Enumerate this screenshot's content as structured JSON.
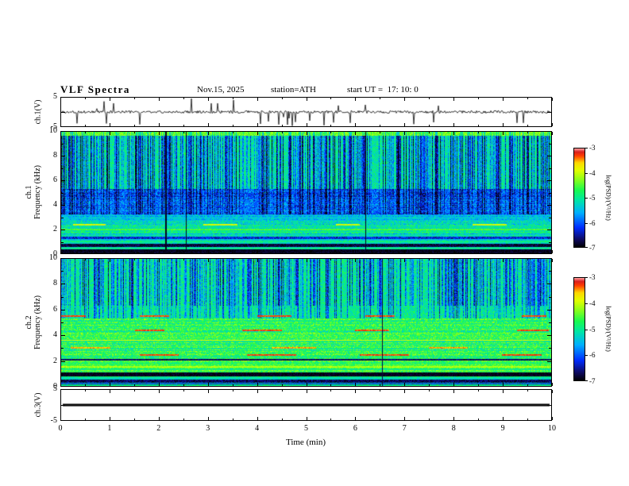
{
  "header": {
    "title": "VLF Spectra",
    "date": "Nov.15, 2025",
    "station": "station=ATH",
    "start_ut": "start UT =  17: 10: 0"
  },
  "xaxis": {
    "label": "Time (min)",
    "min": 0,
    "max": 10,
    "ticks": [
      "0",
      "1",
      "2",
      "3",
      "4",
      "5",
      "6",
      "7",
      "8",
      "9",
      "10"
    ]
  },
  "panels": [
    {
      "id": "ch1-voltage",
      "ylabel_lines": [
        "ch.1(V)"
      ],
      "yticks": [
        "5",
        "-5"
      ],
      "ymin": -5,
      "ymax": 5,
      "type": "waveform"
    },
    {
      "id": "ch1-spectrogram",
      "ylabel_lines": [
        "ch.1",
        "Frequency (kHz)"
      ],
      "yticks": [
        "10",
        "8",
        "6",
        "4",
        "2",
        "0"
      ],
      "ymin": 0,
      "ymax": 10,
      "type": "spectrogram"
    },
    {
      "id": "ch2-spectrogram",
      "ylabel_lines": [
        "ch.2",
        "Frequency (kHz)"
      ],
      "yticks": [
        "10",
        "8",
        "6",
        "4",
        "2",
        "0"
      ],
      "ymin": 0,
      "ymax": 10,
      "type": "spectrogram"
    },
    {
      "id": "ch3-voltage",
      "ylabel_lines": [
        "ch.3(V)"
      ],
      "yticks": [
        "5",
        "-5"
      ],
      "ymin": -5,
      "ymax": 5,
      "type": "flatline"
    }
  ],
  "colorbar": {
    "label": "log(PSD)/(V²/Hz)",
    "ticks": [
      "-3",
      "-4",
      "-5",
      "-6",
      "-7"
    ],
    "min": -7,
    "max": -3
  },
  "chart_data": [
    {
      "type": "line",
      "name": "ch.1(V) waveform",
      "xlabel": "Time (min)",
      "ylabel": "ch.1(V)",
      "xlim": [
        0,
        10
      ],
      "ylim": [
        -5,
        5
      ],
      "description": "Noisy broadband voltage trace centred near 0 V with frequent impulsive spikes reaching roughly ±5 V throughout the 10-minute record."
    },
    {
      "type": "heatmap",
      "name": "ch.1 spectrogram",
      "xlabel": "Time (min)",
      "ylabel": "ch.1 Frequency (kHz)",
      "xlim": [
        0,
        10
      ],
      "ylim": [
        0,
        10
      ],
      "zlim": [
        -7,
        -3
      ],
      "z_units": "log(PSD)/(V²/Hz)",
      "features": [
        "green-cyan background near -5 above 5 kHz with dense dark-blue vertical impulsive streaks",
        "darker blue band between roughly 3 and 5 kHz",
        "horizontal green/cyan striping below 3 kHz",
        "intermittent orange-red line segments near 2.3 kHz",
        "near-black bands below 0.8 kHz",
        "brighter yellow-green speckle along the 10 kHz top edge"
      ]
    },
    {
      "type": "heatmap",
      "name": "ch.2 spectrogram",
      "xlabel": "Time (min)",
      "ylabel": "ch.2 Frequency (kHz)",
      "xlim": [
        0,
        10
      ],
      "ylim": [
        0,
        10
      ],
      "zlim": [
        -7,
        -3
      ],
      "z_units": "log(PSD)/(V²/Hz)",
      "features": [
        "green background with dense dark-blue vertical streaks above 6 kHz",
        "bright yellow-green band from about 1 to 5 kHz",
        "intermittent dark-red horizontal stripe segments near 5.5, 4.3, 3.6, 3.0 and 2.4 kHz",
        "continuous dark line at 2 kHz",
        "black band between about 0.8 and 1.0 kHz",
        "thin dark lines near the 0 kHz bottom edge"
      ]
    },
    {
      "type": "line",
      "name": "ch.3(V) waveform",
      "xlabel": "Time (min)",
      "ylabel": "ch.3(V)",
      "xlim": [
        0,
        10
      ],
      "ylim": [
        -5,
        5
      ],
      "description": "Constant flat thick black trace at 0 V for the full record (no signal)."
    }
  ],
  "render": {
    "vmin": -7,
    "vmax": -3,
    "fmax": 10,
    "tmax": 10,
    "colormap": [
      [
        0,
        [
          0,
          0,
          0
        ]
      ],
      [
        0.08,
        [
          15,
          10,
          95
        ]
      ],
      [
        0.2,
        [
          0,
          45,
          255
        ]
      ],
      [
        0.35,
        [
          0,
          175,
          255
        ]
      ],
      [
        0.48,
        [
          0,
          230,
          165
        ]
      ],
      [
        0.58,
        [
          25,
          250,
          80
        ]
      ],
      [
        0.68,
        [
          130,
          255,
          30
        ]
      ],
      [
        0.78,
        [
          225,
          255,
          0
        ]
      ],
      [
        0.86,
        [
          255,
          215,
          0
        ]
      ],
      [
        0.93,
        [
          255,
          60,
          0
        ]
      ],
      [
        0.97,
        [
          215,
          30,
          30
        ]
      ],
      [
        1,
        [
          255,
          150,
          150
        ]
      ]
    ],
    "waveform": {
      "seed": 3,
      "noise": 0.45,
      "spike_prob": 0.04,
      "spike_amp": 5
    },
    "flatline": {
      "thickness": 3
    },
    "spectrograms": {
      "ch1": {
        "seed": 7,
        "bands": [
          {
            "f0": 0,
            "f1": 0.3,
            "base": -6.9,
            "noise": 0.15
          },
          {
            "f0": 0.3,
            "f1": 0.5,
            "base": -5.4,
            "noise": 0.3,
            "rowvar": 0.3
          },
          {
            "f0": 0.5,
            "f1": 0.8,
            "base": -6.8,
            "noise": 0.25
          },
          {
            "f0": 0.8,
            "f1": 1.15,
            "base": -5.2,
            "noise": 0.35,
            "rowvar": 0.3
          },
          {
            "f0": 1.15,
            "f1": 1.4,
            "base": -6.3,
            "noise": 0.4
          },
          {
            "f0": 1.4,
            "f1": 2.7,
            "base": -5.15,
            "noise": 0.45,
            "rowvar": 0.35
          },
          {
            "f0": 2.7,
            "f1": 3.2,
            "base": -5.5,
            "noise": 0.4,
            "rowvar": 0.3
          },
          {
            "f0": 3.2,
            "f1": 5.3,
            "base": -5.9,
            "noise": 0.5,
            "rowvar": 0.2,
            "streak": {
              "prob": 0.4,
              "depth": 0.8
            }
          },
          {
            "f0": 5.3,
            "f1": 9.7,
            "base": -5.05,
            "noise": 0.45,
            "streak": {
              "prob": 0.48,
              "depth": 1.5
            }
          },
          {
            "f0": 9.7,
            "f1": 10.01,
            "base": -4.35,
            "noise": 0.4,
            "streak": {
              "prob": 0.3,
              "depth": 0.9
            }
          }
        ],
        "hlines": [
          {
            "f": 2.35,
            "th": 0.12,
            "value": -3.9,
            "segs": [
              [
                0.25,
                0.9
              ],
              [
                2.9,
                3.6
              ],
              [
                5.6,
                6.1
              ],
              [
                8.4,
                9.1
              ]
            ]
          },
          {
            "f": 1.95,
            "th": 0.09,
            "value": -4.5,
            "segs": [
              [
                0,
                10
              ]
            ]
          },
          {
            "f": 1.0,
            "th": 0.08,
            "value": -4.8,
            "segs": [
              [
                0,
                10
              ]
            ]
          },
          {
            "f": 0.4,
            "th": 0.08,
            "value": -4.7,
            "segs": [
              [
                0,
                10
              ]
            ]
          }
        ],
        "vcols": [
          {
            "t": 2.12,
            "w": 2,
            "value": -6.9
          },
          {
            "t": 2.55,
            "w": 1,
            "value": -6.9
          },
          {
            "t": 6.2,
            "w": 1,
            "value": -6.9
          }
        ]
      },
      "ch2": {
        "seed": 13,
        "bands": [
          {
            "f0": 0,
            "f1": 0.28,
            "base": -5.2,
            "noise": 0.35,
            "rowvar": 0.3
          },
          {
            "f0": 0.28,
            "f1": 0.5,
            "base": -6.7,
            "noise": 0.3
          },
          {
            "f0": 0.5,
            "f1": 0.78,
            "base": -5.0,
            "noise": 0.3,
            "rowvar": 0.3
          },
          {
            "f0": 0.78,
            "f1": 1.05,
            "base": -6.9,
            "noise": 0.15
          },
          {
            "f0": 1.05,
            "f1": 2.05,
            "base": -4.65,
            "noise": 0.4,
            "rowvar": 0.3
          },
          {
            "f0": 2.05,
            "f1": 5.3,
            "base": -4.75,
            "noise": 0.5,
            "rowvar": 0.35
          },
          {
            "f0": 5.3,
            "f1": 6.3,
            "base": -5.0,
            "noise": 0.45,
            "streak": {
              "prob": 0.3,
              "depth": 1.1
            }
          },
          {
            "f0": 6.3,
            "f1": 10.01,
            "base": -5.0,
            "noise": 0.45,
            "streak": {
              "prob": 0.46,
              "depth": 1.4
            }
          }
        ],
        "hlines": [
          {
            "f": 5.5,
            "th": 0.13,
            "value": -3.25,
            "segs": [
              [
                0,
                0.5
              ],
              [
                1.6,
                2.2
              ],
              [
                4.0,
                4.7
              ],
              [
                6.2,
                6.8
              ],
              [
                9.4,
                9.9
              ]
            ]
          },
          {
            "f": 4.35,
            "th": 0.13,
            "value": -3.25,
            "segs": [
              [
                1.5,
                2.1
              ],
              [
                3.7,
                4.5
              ],
              [
                6.0,
                6.7
              ],
              [
                9.3,
                9.95
              ]
            ]
          },
          {
            "f": 3.6,
            "th": 0.1,
            "value": -3.9,
            "segs": [
              [
                0,
                10
              ]
            ]
          },
          {
            "f": 3.0,
            "th": 0.1,
            "value": -3.5,
            "segs": [
              [
                0.2,
                1.0
              ],
              [
                4.3,
                5.2
              ],
              [
                7.5,
                8.3
              ]
            ]
          },
          {
            "f": 2.45,
            "th": 0.1,
            "value": -3.25,
            "segs": [
              [
                1.6,
                2.4
              ],
              [
                3.8,
                4.8
              ],
              [
                6.1,
                7.1
              ],
              [
                9.0,
                9.8
              ]
            ]
          },
          {
            "f": 2.05,
            "th": 0.1,
            "value": -6.7,
            "segs": [
              [
                0,
                10
              ]
            ]
          },
          {
            "f": 1.5,
            "th": 0.08,
            "value": -4.1,
            "segs": [
              [
                0,
                10
              ]
            ]
          },
          {
            "f": 0.15,
            "th": 0.07,
            "value": -6.5,
            "segs": [
              [
                0,
                10
              ]
            ]
          }
        ],
        "vcols": [
          {
            "t": 6.55,
            "w": 1,
            "value": -6.8
          }
        ]
      }
    }
  }
}
